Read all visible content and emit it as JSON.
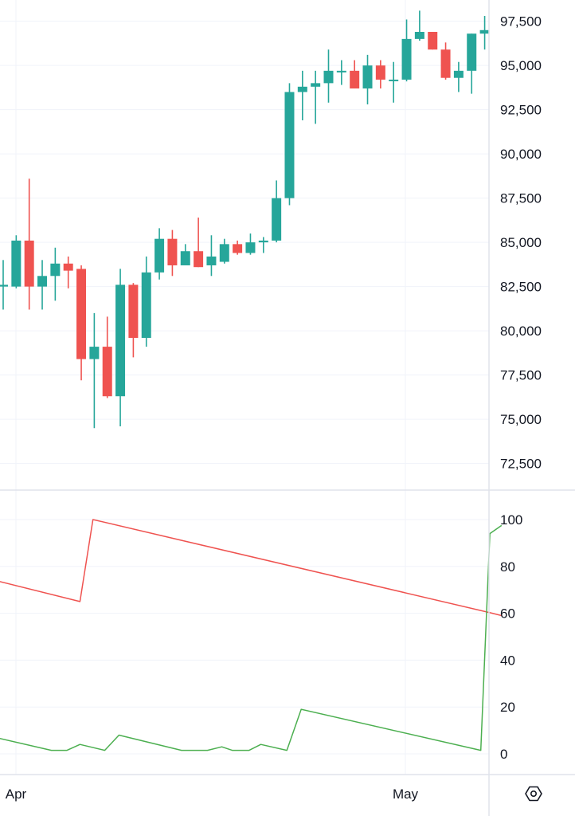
{
  "chart_data": [
    {
      "type": "candlestick",
      "y_ticks": [
        97500,
        95000,
        92500,
        90000,
        87500,
        85000,
        82500,
        80000,
        77500,
        75000,
        72500
      ],
      "ylim": [
        71000,
        98300
      ],
      "x_labels": [
        "Apr",
        "May"
      ],
      "grid": true,
      "colors": {
        "up": "#26a69a",
        "down": "#ef5350"
      },
      "candles": [
        {
          "o": 82500,
          "h": 84000,
          "l": 81200,
          "c": 82600
        },
        {
          "o": 82500,
          "h": 85400,
          "l": 82400,
          "c": 85100
        },
        {
          "o": 85100,
          "h": 88600,
          "l": 81200,
          "c": 82500
        },
        {
          "o": 82500,
          "h": 84000,
          "l": 81200,
          "c": 83100
        },
        {
          "o": 83100,
          "h": 84700,
          "l": 81700,
          "c": 83800
        },
        {
          "o": 83800,
          "h": 84200,
          "l": 82400,
          "c": 83400
        },
        {
          "o": 83500,
          "h": 83700,
          "l": 77200,
          "c": 78400
        },
        {
          "o": 78400,
          "h": 81000,
          "l": 74500,
          "c": 79100
        },
        {
          "o": 79100,
          "h": 80800,
          "l": 76200,
          "c": 76300
        },
        {
          "o": 76300,
          "h": 83500,
          "l": 74600,
          "c": 82600
        },
        {
          "o": 82600,
          "h": 82700,
          "l": 78500,
          "c": 79600
        },
        {
          "o": 79600,
          "h": 84200,
          "l": 79100,
          "c": 83300
        },
        {
          "o": 83300,
          "h": 85800,
          "l": 82900,
          "c": 85200
        },
        {
          "o": 85200,
          "h": 85700,
          "l": 83100,
          "c": 83700
        },
        {
          "o": 83700,
          "h": 84900,
          "l": 83800,
          "c": 84500
        },
        {
          "o": 84500,
          "h": 86400,
          "l": 83600,
          "c": 83600
        },
        {
          "o": 83700,
          "h": 85400,
          "l": 83100,
          "c": 84200
        },
        {
          "o": 83900,
          "h": 85200,
          "l": 83800,
          "c": 84900
        },
        {
          "o": 84900,
          "h": 85100,
          "l": 84300,
          "c": 84400
        },
        {
          "o": 84400,
          "h": 85500,
          "l": 84300,
          "c": 85000
        },
        {
          "o": 85000,
          "h": 85300,
          "l": 84400,
          "c": 85100
        },
        {
          "o": 85100,
          "h": 88500,
          "l": 85000,
          "c": 87500
        },
        {
          "o": 87500,
          "h": 94000,
          "l": 87100,
          "c": 93500
        },
        {
          "o": 93500,
          "h": 94700,
          "l": 91900,
          "c": 93800
        },
        {
          "o": 93800,
          "h": 94700,
          "l": 91700,
          "c": 94000
        },
        {
          "o": 94000,
          "h": 95900,
          "l": 92900,
          "c": 94700
        },
        {
          "o": 94700,
          "h": 95300,
          "l": 93900,
          "c": 94700
        },
        {
          "o": 94700,
          "h": 95300,
          "l": 93700,
          "c": 93700
        },
        {
          "o": 93700,
          "h": 95600,
          "l": 92800,
          "c": 95000
        },
        {
          "o": 95000,
          "h": 95300,
          "l": 93700,
          "c": 94200
        },
        {
          "o": 94200,
          "h": 95200,
          "l": 92900,
          "c": 94200
        },
        {
          "o": 94200,
          "h": 97600,
          "l": 94100,
          "c": 96500
        },
        {
          "o": 96500,
          "h": 98100,
          "l": 96400,
          "c": 96900
        },
        {
          "o": 96900,
          "h": 96900,
          "l": 95900,
          "c": 95900
        },
        {
          "o": 95900,
          "h": 96300,
          "l": 94200,
          "c": 94300
        },
        {
          "o": 94300,
          "h": 95200,
          "l": 93500,
          "c": 94700
        },
        {
          "o": 94700,
          "h": 96800,
          "l": 93400,
          "c": 96800
        },
        {
          "o": 96800,
          "h": 97800,
          "l": 95900,
          "c": 97000
        }
      ]
    },
    {
      "type": "line",
      "y_ticks": [
        100,
        80,
        60,
        40,
        20,
        0
      ],
      "ylim": [
        -5,
        105
      ],
      "grid": true,
      "series": [
        {
          "color": "#ef5350",
          "points": [
            [
              -0.6,
              74
            ],
            [
              5.9,
              65
            ],
            [
              6.9,
              100
            ],
            [
              37.6,
              60
            ],
            [
              38.3,
              59
            ]
          ]
        },
        {
          "color": "#4caf50",
          "points": [
            [
              -0.6,
              7
            ],
            [
              3.7,
              1.5
            ],
            [
              4.9,
              1.5
            ],
            [
              5.9,
              4
            ],
            [
              7.8,
              1.5
            ],
            [
              8.9,
              8
            ],
            [
              13.7,
              1.5
            ],
            [
              15.7,
              1.5
            ],
            [
              16.8,
              3
            ],
            [
              17.6,
              1.5
            ],
            [
              18.9,
              1.5
            ],
            [
              19.8,
              4
            ],
            [
              21.8,
              1.5
            ],
            [
              22.9,
              19
            ],
            [
              36.7,
              1.5
            ],
            [
              37.4,
              94
            ],
            [
              38.3,
              97.5
            ]
          ]
        }
      ]
    }
  ],
  "settings_icon": "settings-hexagon-icon"
}
